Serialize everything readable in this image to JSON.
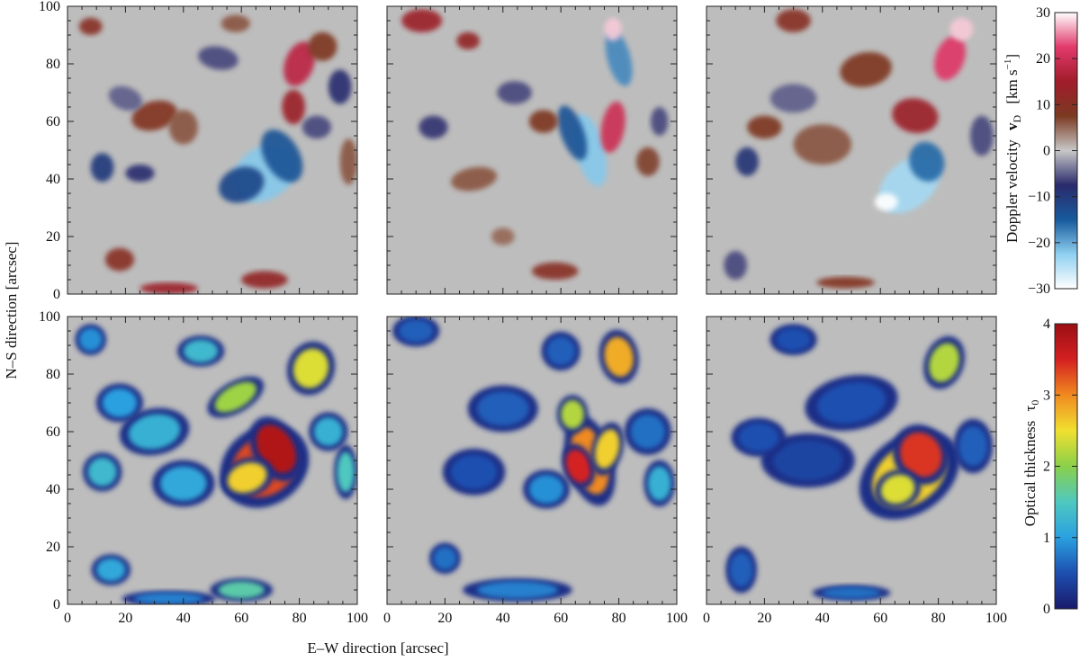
{
  "figure": {
    "shared_xlabel": "E–W direction   [arcsec]",
    "shared_ylabel": "N–S direction   [arcsec]"
  },
  "colorbars": {
    "doppler": {
      "label": "Doppler velocity",
      "symbol": "v",
      "subscript": "D",
      "unit_open": "[km s",
      "unit_exp": "−1",
      "unit_close": "]",
      "range": [
        -30,
        30
      ],
      "ticks": [
        "30",
        "20",
        "10",
        "0",
        "−10",
        "−20",
        "−30"
      ],
      "colors": [
        "#ffffff",
        "#e23a6b",
        "#a11c2a",
        "#7b3a22",
        "#c8c8c8",
        "#2a2a6c",
        "#175a9c",
        "#8fd0f0",
        "#ffffff"
      ]
    },
    "optical": {
      "label": "Optical thickness",
      "symbol": "τ",
      "subscript": "0",
      "range": [
        0,
        4
      ],
      "ticks": [
        "4",
        "3",
        "2",
        "1",
        "0"
      ],
      "colors": [
        "#1a1a6a",
        "#1d4fb0",
        "#2aa0e0",
        "#4fc8c0",
        "#8ad04a",
        "#f0e030",
        "#f08a20",
        "#d42020",
        "#9a0e14"
      ]
    }
  },
  "chart_data": [
    {
      "type": "heatmap",
      "row": "Doppler velocity",
      "column": 1,
      "x_range": [
        0,
        100
      ],
      "y_range": [
        0,
        100
      ],
      "xticks": [
        "0",
        "20",
        "40",
        "60",
        "80",
        "100"
      ],
      "yticks": [
        "0",
        "20",
        "40",
        "60",
        "80",
        "100"
      ],
      "colorbar": "doppler"
    },
    {
      "type": "heatmap",
      "row": "Doppler velocity",
      "column": 2,
      "x_range": [
        0,
        100
      ],
      "y_range": [
        0,
        100
      ],
      "colorbar": "doppler"
    },
    {
      "type": "heatmap",
      "row": "Doppler velocity",
      "column": 3,
      "x_range": [
        0,
        100
      ],
      "y_range": [
        0,
        100
      ],
      "colorbar": "doppler"
    },
    {
      "type": "heatmap",
      "row": "Optical thickness",
      "column": 1,
      "x_range": [
        0,
        100
      ],
      "y_range": [
        0,
        100
      ],
      "xticks": [
        "0",
        "20",
        "40",
        "60",
        "80",
        "100"
      ],
      "yticks": [
        "0",
        "20",
        "40",
        "60",
        "80",
        "100"
      ],
      "colorbar": "optical"
    },
    {
      "type": "heatmap",
      "row": "Optical thickness",
      "column": 2,
      "x_range": [
        0,
        100
      ],
      "y_range": [
        0,
        100
      ],
      "xticks": [
        "0",
        "20",
        "40",
        "60",
        "80",
        "100"
      ],
      "colorbar": "optical"
    },
    {
      "type": "heatmap",
      "row": "Optical thickness",
      "column": 3,
      "x_range": [
        0,
        100
      ],
      "y_range": [
        0,
        100
      ],
      "xticks": [
        "0",
        "20",
        "40",
        "60",
        "80",
        "100"
      ],
      "colorbar": "optical"
    }
  ],
  "map_features": {
    "doppler": [
      [
        {
          "x": 68,
          "y": 42,
          "rx": 12,
          "ry": 9,
          "v": -22,
          "rot": -35
        },
        {
          "x": 60,
          "y": 38,
          "rx": 8,
          "ry": 6,
          "v": -12,
          "rot": -20
        },
        {
          "x": 74,
          "y": 48,
          "rx": 6,
          "ry": 10,
          "v": -14,
          "rot": -30
        },
        {
          "x": 80,
          "y": 80,
          "rx": 5,
          "ry": 8,
          "v": 18,
          "rot": 20
        },
        {
          "x": 78,
          "y": 65,
          "rx": 4,
          "ry": 6,
          "v": 14,
          "rot": 0
        },
        {
          "x": 88,
          "y": 86,
          "rx": 5,
          "ry": 5,
          "v": 8,
          "rot": 0
        },
        {
          "x": 52,
          "y": 82,
          "rx": 7,
          "ry": 4,
          "v": -6,
          "rot": 10
        },
        {
          "x": 30,
          "y": 62,
          "rx": 8,
          "ry": 5,
          "v": 9,
          "rot": -15
        },
        {
          "x": 20,
          "y": 68,
          "rx": 6,
          "ry": 4,
          "v": -5,
          "rot": 20
        },
        {
          "x": 40,
          "y": 58,
          "rx": 5,
          "ry": 6,
          "v": 6,
          "rot": 0
        },
        {
          "x": 12,
          "y": 44,
          "rx": 4,
          "ry": 5,
          "v": -10,
          "rot": 0
        },
        {
          "x": 25,
          "y": 42,
          "rx": 5,
          "ry": 3,
          "v": -8,
          "rot": 0
        },
        {
          "x": 86,
          "y": 58,
          "rx": 5,
          "ry": 4,
          "v": -6,
          "rot": 0
        },
        {
          "x": 97,
          "y": 46,
          "rx": 3,
          "ry": 8,
          "v": 6,
          "rot": 0
        },
        {
          "x": 94,
          "y": 72,
          "rx": 4,
          "ry": 6,
          "v": -8,
          "rot": 0
        },
        {
          "x": 18,
          "y": 12,
          "rx": 5,
          "ry": 4,
          "v": 10,
          "rot": 0
        },
        {
          "x": 68,
          "y": 5,
          "rx": 8,
          "ry": 3,
          "v": 12,
          "rot": 0
        },
        {
          "x": 35,
          "y": 2,
          "rx": 10,
          "ry": 2,
          "v": 14,
          "rot": 0
        },
        {
          "x": 8,
          "y": 93,
          "rx": 4,
          "ry": 3,
          "v": 10,
          "rot": 0
        },
        {
          "x": 58,
          "y": 94,
          "rx": 5,
          "ry": 3,
          "v": 6,
          "rot": 0
        }
      ],
      [
        {
          "x": 70,
          "y": 50,
          "rx": 5,
          "ry": 13,
          "v": -22,
          "rot": -15
        },
        {
          "x": 64,
          "y": 56,
          "rx": 4,
          "ry": 10,
          "v": -14,
          "rot": -20
        },
        {
          "x": 78,
          "y": 58,
          "rx": 4,
          "ry": 9,
          "v": 20,
          "rot": 10
        },
        {
          "x": 80,
          "y": 82,
          "rx": 4,
          "ry": 10,
          "v": -18,
          "rot": -15
        },
        {
          "x": 78,
          "y": 92,
          "rx": 3,
          "ry": 4,
          "v": 28,
          "rot": 0
        },
        {
          "x": 12,
          "y": 95,
          "rx": 7,
          "ry": 4,
          "v": 14,
          "rot": 0
        },
        {
          "x": 28,
          "y": 88,
          "rx": 4,
          "ry": 3,
          "v": 12,
          "rot": 0
        },
        {
          "x": 44,
          "y": 70,
          "rx": 6,
          "ry": 4,
          "v": -6,
          "rot": 0
        },
        {
          "x": 54,
          "y": 60,
          "rx": 5,
          "ry": 4,
          "v": 8,
          "rot": 0
        },
        {
          "x": 30,
          "y": 40,
          "rx": 8,
          "ry": 4,
          "v": 6,
          "rot": -10
        },
        {
          "x": 16,
          "y": 58,
          "rx": 5,
          "ry": 4,
          "v": -7,
          "rot": 0
        },
        {
          "x": 58,
          "y": 8,
          "rx": 8,
          "ry": 3,
          "v": 10,
          "rot": 0
        },
        {
          "x": 90,
          "y": 46,
          "rx": 4,
          "ry": 5,
          "v": 7,
          "rot": 0
        },
        {
          "x": 94,
          "y": 60,
          "rx": 3,
          "ry": 5,
          "v": -6,
          "rot": 0
        },
        {
          "x": 40,
          "y": 20,
          "rx": 4,
          "ry": 3,
          "v": 5,
          "rot": 0
        }
      ],
      [
        {
          "x": 70,
          "y": 38,
          "rx": 12,
          "ry": 8,
          "v": -24,
          "rot": -40
        },
        {
          "x": 76,
          "y": 46,
          "rx": 6,
          "ry": 7,
          "v": -16,
          "rot": -20
        },
        {
          "x": 62,
          "y": 32,
          "rx": 4,
          "ry": 3,
          "v": 30,
          "rot": 0
        },
        {
          "x": 72,
          "y": 62,
          "rx": 8,
          "ry": 6,
          "v": 14,
          "rot": 10
        },
        {
          "x": 84,
          "y": 82,
          "rx": 5,
          "ry": 8,
          "v": 22,
          "rot": 20
        },
        {
          "x": 88,
          "y": 92,
          "rx": 4,
          "ry": 4,
          "v": 28,
          "rot": 0
        },
        {
          "x": 55,
          "y": 78,
          "rx": 9,
          "ry": 6,
          "v": 8,
          "rot": -10
        },
        {
          "x": 30,
          "y": 68,
          "rx": 8,
          "ry": 5,
          "v": -5,
          "rot": 0
        },
        {
          "x": 40,
          "y": 52,
          "rx": 10,
          "ry": 7,
          "v": 6,
          "rot": 0
        },
        {
          "x": 20,
          "y": 58,
          "rx": 6,
          "ry": 4,
          "v": 8,
          "rot": 0
        },
        {
          "x": 14,
          "y": 46,
          "rx": 4,
          "ry": 5,
          "v": -9,
          "rot": 0
        },
        {
          "x": 95,
          "y": 55,
          "rx": 4,
          "ry": 7,
          "v": -6,
          "rot": 0
        },
        {
          "x": 30,
          "y": 95,
          "rx": 6,
          "ry": 4,
          "v": 10,
          "rot": 0
        },
        {
          "x": 10,
          "y": 10,
          "rx": 4,
          "ry": 5,
          "v": -6,
          "rot": 0
        },
        {
          "x": 48,
          "y": 4,
          "rx": 10,
          "ry": 2,
          "v": 9,
          "rot": 0
        }
      ]
    ],
    "optical": [
      [
        {
          "x": 68,
          "y": 48,
          "rx": 12,
          "ry": 10,
          "t": 3.3,
          "rot": -35
        },
        {
          "x": 72,
          "y": 54,
          "rx": 6,
          "ry": 9,
          "t": 3.8,
          "rot": -30
        },
        {
          "x": 62,
          "y": 44,
          "rx": 7,
          "ry": 5,
          "t": 2.6,
          "rot": -20
        },
        {
          "x": 58,
          "y": 72,
          "rx": 8,
          "ry": 4,
          "t": 2.1,
          "rot": -30
        },
        {
          "x": 84,
          "y": 82,
          "rx": 6,
          "ry": 7,
          "t": 2.4,
          "rot": 20
        },
        {
          "x": 30,
          "y": 60,
          "rx": 9,
          "ry": 6,
          "t": 1.2,
          "rot": -10
        },
        {
          "x": 18,
          "y": 70,
          "rx": 6,
          "ry": 5,
          "t": 1.0,
          "rot": 0
        },
        {
          "x": 40,
          "y": 42,
          "rx": 8,
          "ry": 6,
          "t": 1.1,
          "rot": 0
        },
        {
          "x": 12,
          "y": 46,
          "rx": 5,
          "ry": 5,
          "t": 1.3,
          "rot": 0
        },
        {
          "x": 90,
          "y": 60,
          "rx": 5,
          "ry": 5,
          "t": 1.2,
          "rot": 0
        },
        {
          "x": 96,
          "y": 46,
          "rx": 3,
          "ry": 7,
          "t": 1.5,
          "rot": 0
        },
        {
          "x": 46,
          "y": 88,
          "rx": 6,
          "ry": 4,
          "t": 1.3,
          "rot": 0
        },
        {
          "x": 15,
          "y": 12,
          "rx": 5,
          "ry": 4,
          "t": 1.1,
          "rot": 0
        },
        {
          "x": 60,
          "y": 5,
          "rx": 8,
          "ry": 3,
          "t": 1.6,
          "rot": 0
        },
        {
          "x": 35,
          "y": 2,
          "rx": 12,
          "ry": 2,
          "t": 0.8,
          "rot": 0
        },
        {
          "x": 8,
          "y": 92,
          "rx": 4,
          "ry": 4,
          "t": 0.9,
          "rot": 0
        }
      ],
      [
        {
          "x": 70,
          "y": 50,
          "rx": 6,
          "ry": 12,
          "t": 3.0,
          "rot": -15
        },
        {
          "x": 66,
          "y": 48,
          "rx": 4,
          "ry": 6,
          "t": 3.5,
          "rot": -20
        },
        {
          "x": 76,
          "y": 54,
          "rx": 4,
          "ry": 7,
          "t": 2.6,
          "rot": 15
        },
        {
          "x": 80,
          "y": 86,
          "rx": 5,
          "ry": 7,
          "t": 2.8,
          "rot": -10
        },
        {
          "x": 64,
          "y": 66,
          "rx": 4,
          "ry": 5,
          "t": 2.2,
          "rot": 0
        },
        {
          "x": 40,
          "y": 68,
          "rx": 9,
          "ry": 6,
          "t": 0.6,
          "rot": 0
        },
        {
          "x": 30,
          "y": 46,
          "rx": 8,
          "ry": 6,
          "t": 0.5,
          "rot": 0
        },
        {
          "x": 55,
          "y": 40,
          "rx": 6,
          "ry": 5,
          "t": 0.9,
          "rot": 0
        },
        {
          "x": 90,
          "y": 60,
          "rx": 6,
          "ry": 6,
          "t": 0.7,
          "rot": 0
        },
        {
          "x": 94,
          "y": 42,
          "rx": 4,
          "ry": 6,
          "t": 1.2,
          "rot": 0
        },
        {
          "x": 60,
          "y": 88,
          "rx": 5,
          "ry": 5,
          "t": 0.6,
          "rot": 0
        },
        {
          "x": 45,
          "y": 5,
          "rx": 14,
          "ry": 3,
          "t": 0.8,
          "rot": 0
        },
        {
          "x": 10,
          "y": 95,
          "rx": 6,
          "ry": 4,
          "t": 0.6,
          "rot": 0
        },
        {
          "x": 20,
          "y": 16,
          "rx": 4,
          "ry": 4,
          "t": 0.7,
          "rot": 0
        }
      ],
      [
        {
          "x": 70,
          "y": 45,
          "rx": 14,
          "ry": 10,
          "t": 2.6,
          "rot": -35
        },
        {
          "x": 74,
          "y": 52,
          "rx": 7,
          "ry": 8,
          "t": 3.4,
          "rot": -30
        },
        {
          "x": 66,
          "y": 40,
          "rx": 6,
          "ry": 5,
          "t": 2.4,
          "rot": -20
        },
        {
          "x": 82,
          "y": 84,
          "rx": 5,
          "ry": 7,
          "t": 2.2,
          "rot": 20
        },
        {
          "x": 50,
          "y": 70,
          "rx": 12,
          "ry": 7,
          "t": 0.5,
          "rot": -10
        },
        {
          "x": 35,
          "y": 50,
          "rx": 12,
          "ry": 7,
          "t": 0.4,
          "rot": 0
        },
        {
          "x": 18,
          "y": 58,
          "rx": 7,
          "ry": 5,
          "t": 0.5,
          "rot": 0
        },
        {
          "x": 92,
          "y": 55,
          "rx": 5,
          "ry": 7,
          "t": 0.6,
          "rot": 0
        },
        {
          "x": 30,
          "y": 92,
          "rx": 6,
          "ry": 4,
          "t": 0.5,
          "rot": 0
        },
        {
          "x": 12,
          "y": 12,
          "rx": 4,
          "ry": 6,
          "t": 0.6,
          "rot": 0
        },
        {
          "x": 50,
          "y": 4,
          "rx": 10,
          "ry": 2,
          "t": 0.7,
          "rot": 0
        }
      ]
    ]
  }
}
